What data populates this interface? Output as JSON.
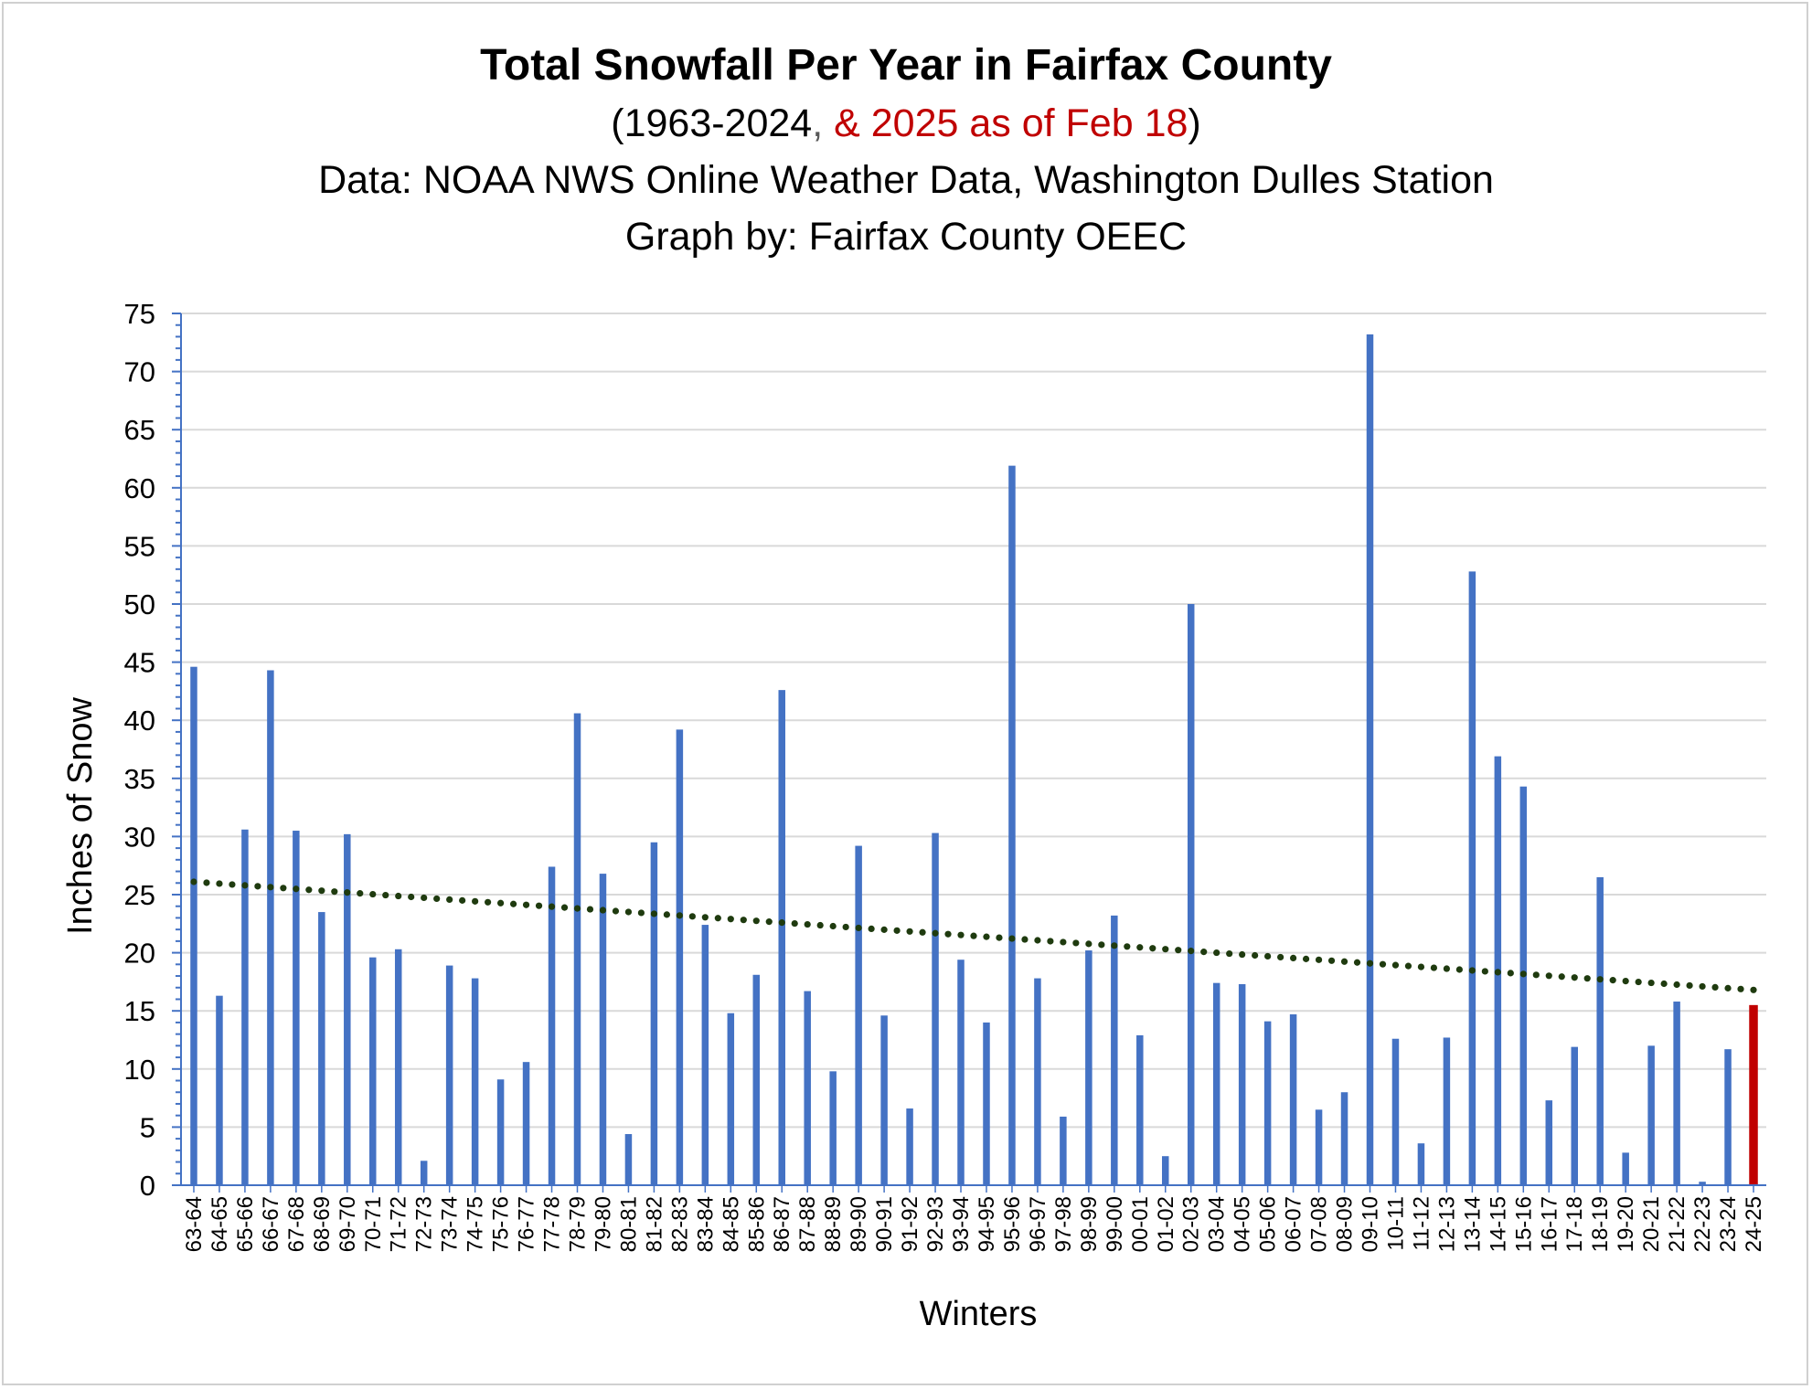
{
  "chart_data": {
    "type": "bar",
    "title": "Total Snowfall Per Year in Fairfax County",
    "subtitle_parts": [
      "(1963-2024",
      ",",
      " & 2025 as of Feb 18",
      ")"
    ],
    "source_line": "Data: NOAA NWS Online Weather Data, Washington Dulles Station",
    "credit_line": "Graph by: Fairfax County OEEC",
    "xlabel": "Winters",
    "ylabel": "Inches of Snow",
    "ylim": [
      0,
      75
    ],
    "yticks": [
      0,
      5,
      10,
      15,
      20,
      25,
      30,
      35,
      40,
      45,
      50,
      55,
      60,
      65,
      70,
      75
    ],
    "gridlines": true,
    "categories": [
      "63-64",
      "64-65",
      "65-66",
      "66-67",
      "67-68",
      "68-69",
      "69-70",
      "70-71",
      "71-72",
      "72-73",
      "73-74",
      "74-75",
      "75-76",
      "76-77",
      "77-78",
      "78-79",
      "79-80",
      "80-81",
      "81-82",
      "82-83",
      "83-84",
      "84-85",
      "85-86",
      "86-87",
      "87-88",
      "88-89",
      "89-90",
      "90-91",
      "91-92",
      "92-93",
      "93-94",
      "94-95",
      "95-96",
      "96-97",
      "97-98",
      "98-99",
      "99-00",
      "00-01",
      "01-02",
      "02-03",
      "03-04",
      "04-05",
      "05-06",
      "06-07",
      "07-08",
      "08-09",
      "09-10",
      "10-11",
      "11-12",
      "12-13",
      "13-14",
      "14-15",
      "15-16",
      "16-17",
      "17-18",
      "18-19",
      "19-20",
      "20-21",
      "21-22",
      "22-23",
      "23-24",
      "24-25"
    ],
    "values": [
      44.6,
      16.3,
      30.6,
      44.3,
      30.5,
      23.5,
      30.2,
      19.6,
      20.3,
      2.1,
      18.9,
      17.8,
      9.1,
      10.6,
      27.4,
      40.6,
      26.8,
      4.4,
      29.5,
      39.2,
      22.4,
      14.8,
      18.1,
      42.6,
      16.7,
      9.8,
      29.2,
      14.6,
      6.6,
      30.3,
      19.4,
      14.0,
      61.9,
      17.8,
      5.9,
      20.2,
      23.2,
      12.9,
      2.5,
      50.0,
      17.4,
      17.3,
      14.1,
      14.7,
      6.5,
      8.0,
      73.2,
      12.6,
      3.6,
      12.7,
      52.8,
      36.9,
      34.3,
      7.3,
      11.9,
      26.5,
      2.8,
      12.0,
      15.8,
      0.3,
      11.7,
      15.5
    ],
    "bar_color": "#4472c4",
    "highlight_color": "#c00000",
    "highlight_index": 61,
    "trendline": {
      "type": "linear",
      "start_value": 26.1,
      "end_value": 16.8,
      "color": "#1f3b0f",
      "style": "dotted"
    }
  }
}
